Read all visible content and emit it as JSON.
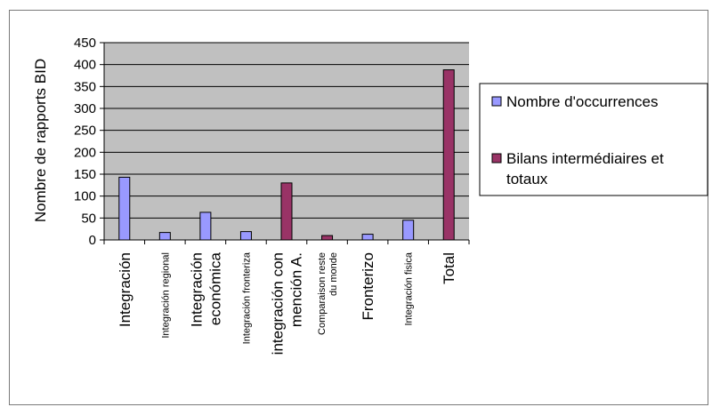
{
  "chart_data": {
    "type": "bar",
    "ylabel": "Nombre de rapports BID",
    "ylim": [
      0,
      450
    ],
    "yticks": [
      0,
      50,
      100,
      150,
      200,
      250,
      300,
      350,
      400,
      450
    ],
    "grid": true,
    "legend_position": "right",
    "categories": [
      {
        "lines": [
          "Integración"
        ],
        "size": "big"
      },
      {
        "lines": [
          "Integración regional"
        ],
        "size": "small"
      },
      {
        "lines": [
          "Integración",
          "económica"
        ],
        "size": "big"
      },
      {
        "lines": [
          "Integración fronteriza"
        ],
        "size": "small"
      },
      {
        "lines": [
          "integración con",
          "mención A."
        ],
        "size": "big"
      },
      {
        "lines": [
          "Comparaison reste",
          "du monde"
        ],
        "size": "small"
      },
      {
        "lines": [
          "Fronterizo"
        ],
        "size": "big"
      },
      {
        "lines": [
          "Integración fisica"
        ],
        "size": "small"
      },
      {
        "lines": [
          "Total"
        ],
        "size": "big"
      }
    ],
    "series": [
      {
        "name": "Nombre d'occurrences",
        "color": "#9999ff",
        "values": [
          143,
          17,
          63,
          19,
          null,
          null,
          13,
          45,
          null
        ]
      },
      {
        "name": "Bilans intermédiaires et totaux",
        "color": "#993366",
        "values": [
          null,
          null,
          null,
          null,
          130,
          10,
          null,
          null,
          388
        ]
      }
    ],
    "legend": [
      {
        "lines": [
          "Nombre d'occurrences"
        ],
        "color": "#9999ff"
      },
      {
        "lines": [
          "Bilans intermédiaires et",
          "totaux"
        ],
        "color": "#993366"
      }
    ]
  }
}
